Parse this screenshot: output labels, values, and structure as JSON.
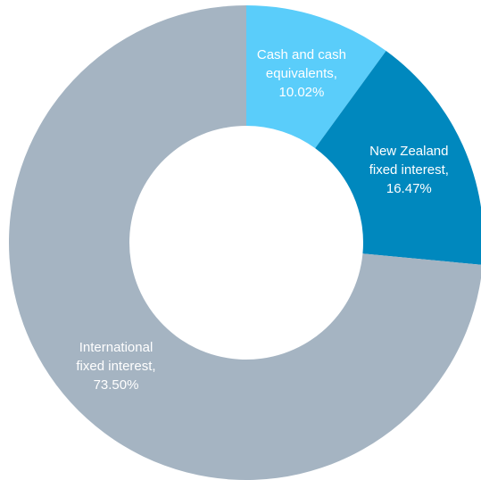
{
  "chart_data": {
    "type": "pie",
    "variant": "donut",
    "title": "",
    "slices": [
      {
        "name": "Cash and cash equivalents",
        "value": 10.02,
        "label_lines": [
          "Cash and cash",
          "equivalents,",
          "10.02%"
        ],
        "color": "#5acdfa"
      },
      {
        "name": "New Zealand fixed interest",
        "value": 16.47,
        "label_lines": [
          "New Zealand",
          "fixed interest,",
          "16.47%"
        ],
        "color": "#0088be"
      },
      {
        "name": "International fixed interest",
        "value": 73.5,
        "label_lines": [
          "International",
          "fixed interest,",
          "73.50%"
        ],
        "color": "#a5b4c2"
      }
    ],
    "start": "top",
    "direction": "clockwise",
    "legend": "none"
  },
  "colors": {
    "background": "#ffffff",
    "label_text": "#ffffff",
    "hole": "#ffffff"
  }
}
